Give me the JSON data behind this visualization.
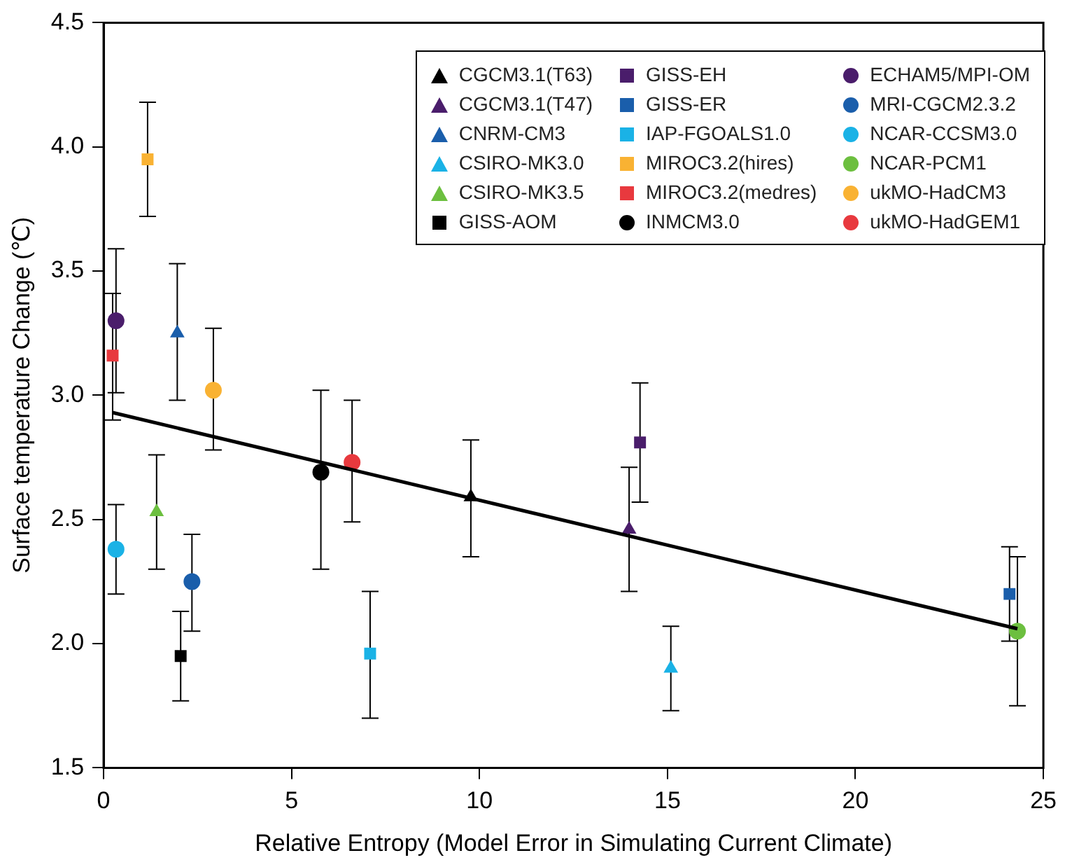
{
  "chart_data": {
    "type": "scatter",
    "xlabel": "Relative Entropy (Model Error in Simulating Current Climate)",
    "ylabel": "Surface temperature Change (℃)",
    "xlim": [
      0,
      25
    ],
    "xticks": [
      0,
      5,
      10,
      15,
      20,
      25
    ],
    "ylim": [
      1.5,
      4.5
    ],
    "yticks": [
      1.5,
      {
        "value": 2,
        "label": "2.0"
      },
      2.5,
      {
        "value": 3,
        "label": "3.0"
      },
      3.5,
      {
        "value": 4,
        "label": "4.0"
      },
      4.5
    ],
    "grid": false,
    "legend": "top right",
    "series": [
      {
        "name": "CGCM3.1(T63)",
        "color": "#000000",
        "marker": "triangle",
        "x": [
          9.77
        ],
        "values": [
          2.59
        ],
        "errors": [
          [
            2.35,
            2.82
          ]
        ]
      },
      {
        "name": "CGCM3.1(T47)",
        "color": "#4a1d6b",
        "marker": "triangle",
        "x": [
          13.98
        ],
        "values": [
          2.46
        ],
        "errors": [
          [
            2.21,
            2.71
          ]
        ]
      },
      {
        "name": "CNRM-CM3",
        "color": "#1a5eab",
        "marker": "triangle",
        "x": [
          1.96
        ],
        "values": [
          3.25
        ],
        "errors": [
          [
            2.98,
            3.53
          ]
        ]
      },
      {
        "name": "CSIRO-MK3.0",
        "color": "#1ab2e6",
        "marker": "triangle",
        "x": [
          15.09
        ],
        "values": [
          1.9
        ],
        "errors": [
          [
            1.73,
            2.07
          ]
        ]
      },
      {
        "name": "CSIRO-MK3.5",
        "color": "#6cbf3f",
        "marker": "triangle",
        "x": [
          1.41
        ],
        "values": [
          2.53
        ],
        "errors": [
          [
            2.3,
            2.76
          ]
        ]
      },
      {
        "name": "GISS-AOM",
        "color": "#000000",
        "marker": "square",
        "x": [
          2.05
        ],
        "values": [
          1.95
        ],
        "errors": [
          [
            1.77,
            2.13
          ]
        ]
      },
      {
        "name": "GISS-EH",
        "color": "#4a1d6b",
        "marker": "square",
        "x": [
          14.27
        ],
        "values": [
          2.81
        ],
        "errors": [
          [
            2.57,
            3.05
          ]
        ]
      },
      {
        "name": "GISS-ER",
        "color": "#1a5eab",
        "marker": "square",
        "x": [
          24.1
        ],
        "values": [
          2.2
        ],
        "errors": [
          [
            2.01,
            2.39
          ]
        ]
      },
      {
        "name": "IAP-FGOALS1.0",
        "color": "#1ab2e6",
        "marker": "square",
        "x": [
          7.09
        ],
        "values": [
          1.96
        ],
        "errors": [
          [
            1.7,
            2.21
          ]
        ]
      },
      {
        "name": "MIROC3.2(hires)",
        "color": "#f9b233",
        "marker": "square",
        "x": [
          1.17
        ],
        "values": [
          3.95
        ],
        "errors": [
          [
            3.72,
            4.18
          ]
        ]
      },
      {
        "name": "MIROC3.2(medres)",
        "color": "#e8393e",
        "marker": "square",
        "x": [
          0.24
        ],
        "values": [
          3.16
        ],
        "errors": [
          [
            2.9,
            3.41
          ]
        ]
      },
      {
        "name": "INMCM3.0",
        "color": "#000000",
        "marker": "circle",
        "x": [
          5.78
        ],
        "values": [
          2.69
        ],
        "errors": [
          [
            2.3,
            3.02
          ]
        ]
      },
      {
        "name": "ECHAM5/MPI-OM",
        "color": "#4a1d6b",
        "marker": "circle",
        "x": [
          0.33
        ],
        "values": [
          3.3
        ],
        "errors": [
          [
            3.01,
            3.59
          ]
        ]
      },
      {
        "name": "MRI-CGCM2.3.2",
        "color": "#1a5eab",
        "marker": "circle",
        "x": [
          2.35
        ],
        "values": [
          2.25
        ],
        "errors": [
          [
            2.05,
            2.44
          ]
        ]
      },
      {
        "name": "NCAR-CCSM3.0",
        "color": "#1ab2e6",
        "marker": "circle",
        "x": [
          0.33
        ],
        "values": [
          2.38
        ],
        "errors": [
          [
            2.2,
            2.56
          ]
        ]
      },
      {
        "name": "NCAR-PCM1",
        "color": "#6cbf3f",
        "marker": "circle",
        "x": [
          24.31
        ],
        "values": [
          2.05
        ],
        "errors": [
          [
            1.75,
            2.35
          ]
        ]
      },
      {
        "name": "ukMO-HadCM3",
        "color": "#f9b233",
        "marker": "circle",
        "x": [
          2.92
        ],
        "values": [
          3.02
        ],
        "errors": [
          [
            2.78,
            3.27
          ]
        ]
      },
      {
        "name": "ukMO-HadGEM1",
        "color": "#e8393e",
        "marker": "circle",
        "x": [
          6.61
        ],
        "values": [
          2.73
        ],
        "errors": [
          [
            2.49,
            2.98
          ]
        ]
      },
      {
        "type": "line",
        "color": "#000000",
        "marker": "none",
        "line_style": "solid",
        "x": [
          0.25,
          24.31
        ],
        "values": [
          2.93,
          2.06
        ]
      }
    ]
  }
}
